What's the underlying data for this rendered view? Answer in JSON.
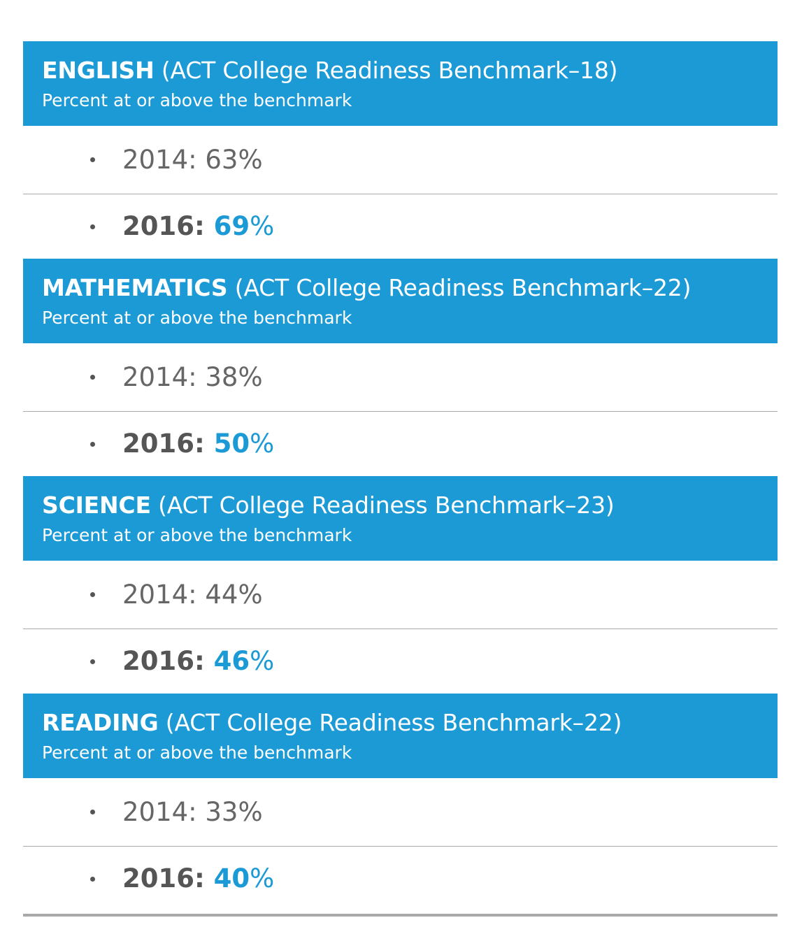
{
  "subtitle": "Percent at or above the benchmark",
  "colors": {
    "accent": "#1b9ad6",
    "text_gray": "#666666",
    "rule_gray": "#a9a9a9"
  },
  "sections": [
    {
      "subject": "ENGLISH",
      "benchmark": "(ACT College Readiness Benchmark–18)",
      "y2014": "2014: 63%",
      "y2016_label": "2016:",
      "y2016_value": "69",
      "y2016_unit": "%"
    },
    {
      "subject": "MATHEMATICS",
      "benchmark": "(ACT College Readiness Benchmark–22)",
      "y2014": "2014: 38%",
      "y2016_label": "2016:",
      "y2016_value": "50",
      "y2016_unit": "%"
    },
    {
      "subject": "SCIENCE",
      "benchmark": "(ACT College Readiness Benchmark–23)",
      "y2014": "2014: 44%",
      "y2016_label": "2016:",
      "y2016_value": "46",
      "y2016_unit": "%"
    },
    {
      "subject": "READING",
      "benchmark": "(ACT College Readiness Benchmark–22)",
      "y2014": "2014: 33%",
      "y2016_label": "2016:",
      "y2016_value": "40",
      "y2016_unit": "%"
    }
  ]
}
